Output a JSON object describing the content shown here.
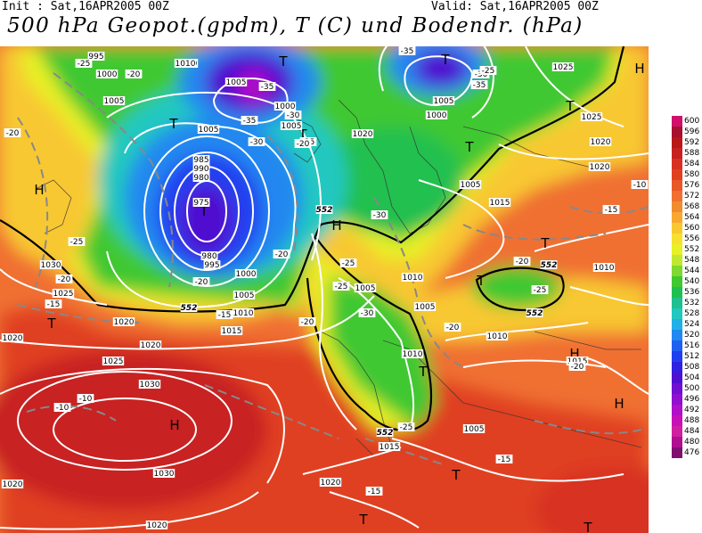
{
  "header": {
    "init": "Init : Sat,16APR2005 00Z",
    "valid": "Valid: Sat,16APR2005 00Z",
    "title": "500 hPa Geopot.(gpdm), T (C) und Bodendr. (hPa)"
  },
  "colorbar": {
    "levels": [
      {
        "label": "600",
        "color": "#d0106a"
      },
      {
        "label": "596",
        "color": "#a81030"
      },
      {
        "label": "592",
        "color": "#b81818"
      },
      {
        "label": "588",
        "color": "#c82020"
      },
      {
        "label": "584",
        "color": "#d83020"
      },
      {
        "label": "580",
        "color": "#e04020"
      },
      {
        "label": "576",
        "color": "#e85828"
      },
      {
        "label": "572",
        "color": "#f07030"
      },
      {
        "label": "568",
        "color": "#f08c30"
      },
      {
        "label": "564",
        "color": "#f8a830"
      },
      {
        "label": "560",
        "color": "#f8c830"
      },
      {
        "label": "556",
        "color": "#f8e030"
      },
      {
        "label": "552",
        "color": "#e8f028"
      },
      {
        "label": "548",
        "color": "#c0e830"
      },
      {
        "label": "544",
        "color": "#80d830"
      },
      {
        "label": "540",
        "color": "#40c830"
      },
      {
        "label": "536",
        "color": "#20c050"
      },
      {
        "label": "532",
        "color": "#20c090"
      },
      {
        "label": "528",
        "color": "#20c8c0"
      },
      {
        "label": "524",
        "color": "#20b0e8"
      },
      {
        "label": "520",
        "color": "#2088f0"
      },
      {
        "label": "516",
        "color": "#2060f0"
      },
      {
        "label": "512",
        "color": "#2040f0"
      },
      {
        "label": "508",
        "color": "#3020e0"
      },
      {
        "label": "504",
        "color": "#5010d0"
      },
      {
        "label": "500",
        "color": "#7010d0"
      },
      {
        "label": "496",
        "color": "#9010d0"
      },
      {
        "label": "492",
        "color": "#b010c8"
      },
      {
        "label": "488",
        "color": "#c810b8"
      },
      {
        "label": "484",
        "color": "#d020a0"
      },
      {
        "label": "480",
        "color": "#b01090"
      },
      {
        "label": "476",
        "color": "#801070"
      }
    ]
  },
  "map": {
    "centers": [
      {
        "label": "T",
        "kind": "low"
      },
      {
        "label": "T",
        "kind": "low"
      },
      {
        "label": "T",
        "kind": "low"
      },
      {
        "label": "T",
        "kind": "low"
      },
      {
        "label": "T",
        "kind": "low"
      },
      {
        "label": "T",
        "kind": "low"
      },
      {
        "label": "T",
        "kind": "low"
      },
      {
        "label": "T",
        "kind": "low"
      },
      {
        "label": "T",
        "kind": "low"
      },
      {
        "label": "T",
        "kind": "low"
      },
      {
        "label": "T",
        "kind": "low"
      },
      {
        "label": "T",
        "kind": "low"
      },
      {
        "label": "T",
        "kind": "low"
      },
      {
        "label": "T",
        "kind": "low"
      },
      {
        "label": "H",
        "kind": "high"
      },
      {
        "label": "H",
        "kind": "high"
      },
      {
        "label": "H",
        "kind": "high"
      },
      {
        "label": "H",
        "kind": "high"
      },
      {
        "label": "H",
        "kind": "high"
      },
      {
        "label": "H",
        "kind": "high"
      }
    ],
    "pressure_labels": [
      "995",
      "1000",
      "1005",
      "1010",
      "1005",
      "1005",
      "1000",
      "1005",
      "1020",
      "1010",
      "1005",
      "1000",
      "1025",
      "1025",
      "1020",
      "1020",
      "1015",
      "1005",
      "985",
      "990",
      "980",
      "975",
      "980",
      "995",
      "1000",
      "1005",
      "1010",
      "1020",
      "1030",
      "1025",
      "1020",
      "1020",
      "1015",
      "1010",
      "1005",
      "1005",
      "1010",
      "1010",
      "1010",
      "1025",
      "1030",
      "1030",
      "1005",
      "1015",
      "1020",
      "1020",
      "1015",
      "1020"
    ],
    "temp_labels": [
      "-25",
      "-20",
      "-35",
      "-30",
      "-35",
      "-30",
      "-25",
      "-20",
      "-35",
      "-30",
      "-35",
      "-25",
      "-20",
      "-15",
      "-10",
      "-25",
      "-20",
      "-15",
      "-20",
      "-25",
      "-30",
      "-20",
      "-25",
      "-20",
      "-30",
      "-25",
      "-20",
      "-15",
      "-15",
      "-10",
      "-10",
      "-15",
      "-20",
      "-25",
      "-20"
    ],
    "gpdm_labels": [
      "552",
      "552",
      "552",
      "552",
      "552"
    ]
  }
}
